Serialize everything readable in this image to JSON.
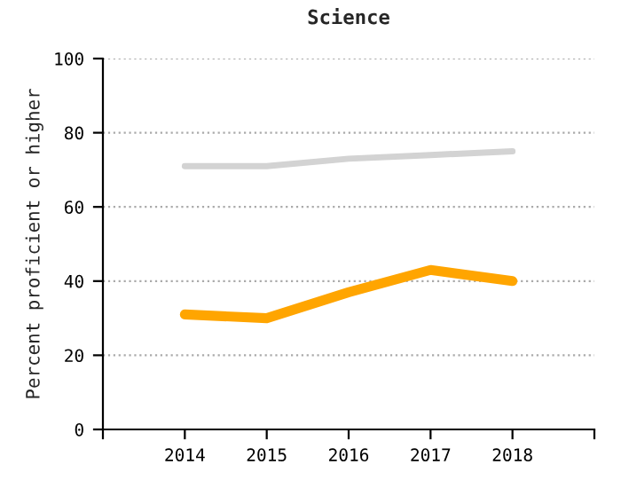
{
  "chart_data": {
    "type": "line",
    "title": "Science",
    "ylabel": "Percent proficient or higher",
    "x": [
      2014,
      2015,
      2016,
      2017,
      2018
    ],
    "series": [
      {
        "color": "#d3d3d3",
        "values": [
          71,
          71,
          73,
          74,
          75
        ]
      },
      {
        "color": "#ffa500",
        "values": [
          31,
          30,
          37,
          43,
          40
        ]
      }
    ],
    "xlim": [
      2013,
      2019
    ],
    "xticks": [
      {
        "value": 2013,
        "label": null
      },
      2014,
      2015,
      2016,
      2017,
      2018,
      {
        "value": 2019,
        "label": null
      }
    ],
    "ylim": [
      0,
      100
    ],
    "yticks": [
      0,
      20,
      40,
      60,
      80,
      100
    ],
    "grid": "y",
    "marker": "none",
    "line_style": "solid"
  }
}
